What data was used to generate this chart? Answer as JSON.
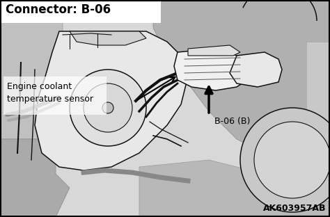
{
  "title": "Connector: B-06",
  "label_sensor": "Engine coolant\ntemperature sensor",
  "label_connector": "B-06 (B)",
  "watermark": "AK603957AB",
  "bg_color": "#f0f0f0",
  "border_color": "#000000",
  "text_color": "#000000",
  "title_fontsize": 12,
  "label_fontsize": 9,
  "watermark_fontsize": 9,
  "fig_width": 4.74,
  "fig_height": 3.12,
  "dpi": 100,
  "image_bg": "#d8d8d8"
}
